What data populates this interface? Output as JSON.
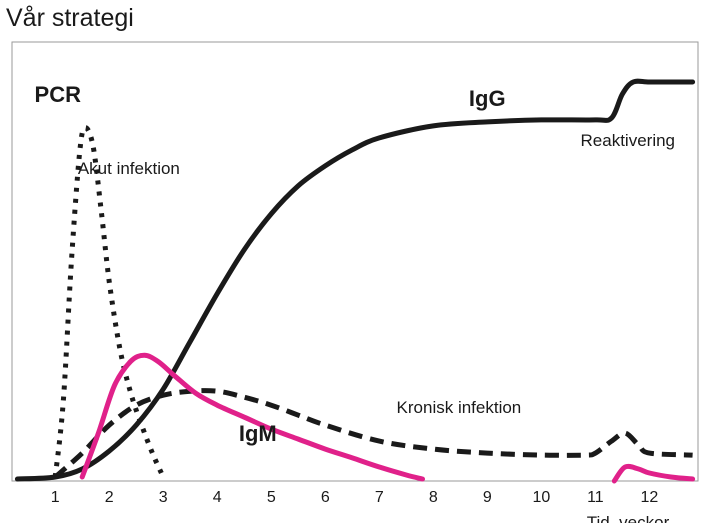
{
  "title": "Vår strategi",
  "chart_data": {
    "type": "line",
    "title": "Vår strategi",
    "xlabel": "Tid, veckor",
    "ylabel": "",
    "xlim": [
      0.2,
      12.9
    ],
    "ylim": [
      0,
      1
    ],
    "grid": false,
    "x_ticks": [
      "1",
      "2",
      "3",
      "4",
      "5",
      "6",
      "7",
      "8",
      "9",
      "10",
      "11",
      "12"
    ],
    "series": [
      {
        "name": "IgG",
        "style": "solid",
        "color": "#1a1a1a",
        "x": [
          0.3,
          1.0,
          1.5,
          2.0,
          2.5,
          3.0,
          3.5,
          4.0,
          4.5,
          5.0,
          5.5,
          6.0,
          6.5,
          7.0,
          8.0,
          9.0,
          10.0,
          11.0,
          11.3,
          11.5,
          11.7,
          12.0,
          12.5,
          12.8
        ],
        "y": [
          0.005,
          0.01,
          0.03,
          0.075,
          0.14,
          0.23,
          0.35,
          0.47,
          0.58,
          0.67,
          0.74,
          0.79,
          0.83,
          0.86,
          0.89,
          0.9,
          0.905,
          0.905,
          0.91,
          0.97,
          1.0,
          1.0,
          1.0,
          1.0
        ]
      },
      {
        "name": "PCR",
        "style": "dotted",
        "color": "#1a1a1a",
        "label": "Akut infektion",
        "x": [
          1.0,
          1.15,
          1.3,
          1.45,
          1.55,
          1.7,
          1.85,
          2.0,
          2.2,
          2.4,
          2.6,
          2.8,
          3.0
        ],
        "y": [
          0.01,
          0.2,
          0.55,
          0.82,
          0.885,
          0.84,
          0.68,
          0.5,
          0.33,
          0.22,
          0.14,
          0.07,
          0.01
        ]
      },
      {
        "name": "Kronisk infektion",
        "style": "dashed",
        "color": "#1a1a1a",
        "x": [
          1.0,
          1.5,
          2.0,
          2.5,
          3.0,
          3.5,
          4.0,
          4.5,
          5.0,
          5.5,
          6.0,
          7.0,
          8.0,
          9.0,
          10.0,
          10.8,
          11.0,
          11.3,
          11.55,
          11.8,
          12.0,
          12.8
        ],
        "y": [
          0.01,
          0.07,
          0.14,
          0.19,
          0.215,
          0.225,
          0.225,
          0.21,
          0.19,
          0.165,
          0.14,
          0.1,
          0.08,
          0.07,
          0.065,
          0.065,
          0.07,
          0.1,
          0.12,
          0.09,
          0.07,
          0.065
        ]
      },
      {
        "name": "IgM",
        "style": "solid",
        "color": "#e0218a",
        "x": [
          1.5,
          1.8,
          2.1,
          2.4,
          2.65,
          2.9,
          3.2,
          3.6,
          4.0,
          4.5,
          5.0,
          5.5,
          6.0,
          6.5,
          7.0,
          7.5,
          7.8
        ],
        "y": [
          0.01,
          0.12,
          0.24,
          0.3,
          0.315,
          0.3,
          0.265,
          0.22,
          0.19,
          0.16,
          0.13,
          0.105,
          0.08,
          0.058,
          0.035,
          0.015,
          0.005
        ]
      },
      {
        "name": "IgM (reaktivering)",
        "style": "solid",
        "color": "#e0218a",
        "x": [
          11.35,
          11.55,
          11.8,
          12.0,
          12.4,
          12.8
        ],
        "y": [
          0.0,
          0.035,
          0.03,
          0.02,
          0.01,
          0.005
        ]
      }
    ],
    "annotations": [
      {
        "text": "PCR",
        "x": 1.45,
        "y": 0.95
      },
      {
        "text": "Akut infektion",
        "x": 2.9,
        "y": 0.77
      },
      {
        "text": "IgG",
        "x": 8.4,
        "y": 0.94
      },
      {
        "text": "Reaktivering",
        "x": 11.6,
        "y": 0.84
      },
      {
        "text": "Kronisk infektion",
        "x": 8.8,
        "y": 0.17
      },
      {
        "text": "IgM",
        "x": 4.4,
        "y": 0.1
      }
    ]
  }
}
